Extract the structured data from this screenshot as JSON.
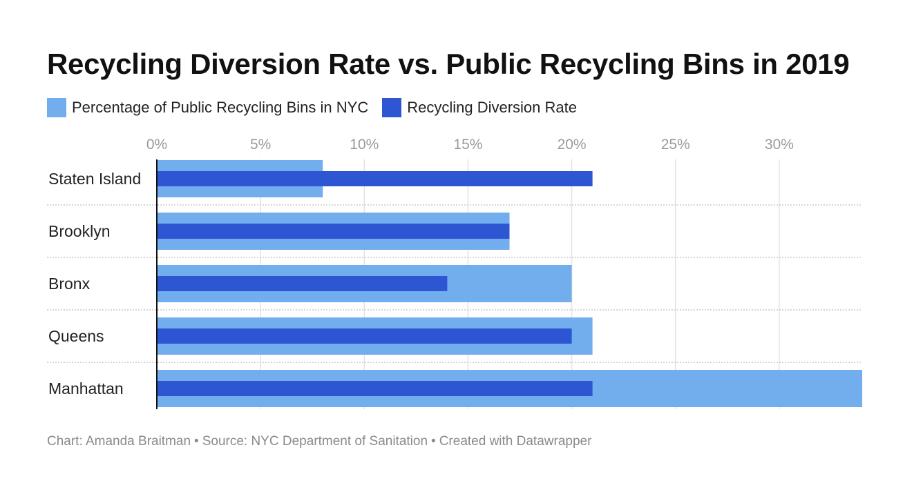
{
  "chart_data": {
    "type": "bar",
    "orientation": "horizontal",
    "title": "Recycling Diversion Rate vs. Public Recycling Bins in 2019",
    "categories": [
      "Staten Island",
      "Brooklyn",
      "Bronx",
      "Queens",
      "Manhattan"
    ],
    "series": [
      {
        "name": "Percentage of Public Recycling Bins in NYC",
        "color": "#72aeed",
        "values": [
          8,
          17,
          20,
          21,
          34
        ]
      },
      {
        "name": "Recycling Diversion Rate",
        "color": "#2f56d2",
        "values": [
          21,
          17,
          14,
          20,
          21
        ]
      }
    ],
    "x_ticks": [
      0,
      5,
      10,
      15,
      20,
      25,
      30
    ],
    "x_tick_labels": [
      "0%",
      "5%",
      "10%",
      "15%",
      "20%",
      "25%",
      "30%"
    ],
    "xlim": [
      0,
      34
    ],
    "grid": true,
    "legend_position": "top-left"
  },
  "footer": {
    "chart_credit": "Chart: Amanda Braitman",
    "separator": "•",
    "source": "Source: NYC Department of Sanitation",
    "created_with": "Created with Datawrapper"
  }
}
